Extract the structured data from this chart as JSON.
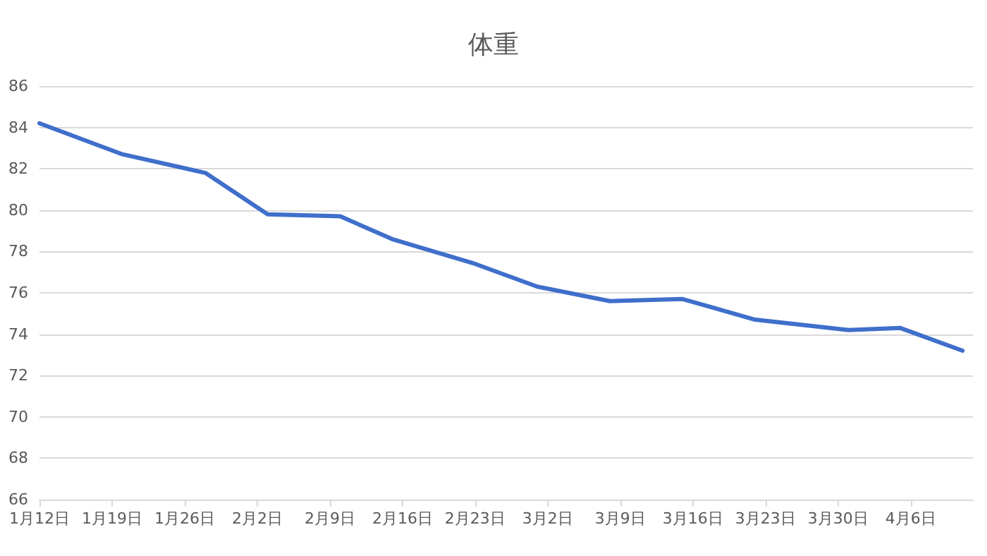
{
  "chart_data": {
    "type": "line",
    "title": "体重",
    "x": [
      "--01-12",
      "--01-20",
      "--01-28",
      "--02-03",
      "--02-10",
      "--02-15",
      "--02-23",
      "--03-01",
      "--03-08",
      "--03-15",
      "--03-22",
      "--03-31",
      "--04-05",
      "--04-11"
    ],
    "series": [
      {
        "color": "#3f6fcb",
        "values": [
          84.2,
          82.7,
          81.8,
          79.8,
          79.7,
          78.6,
          77.4,
          76.3,
          75.6,
          75.7,
          74.7,
          74.2,
          74.3,
          73.2
        ]
      }
    ],
    "xlim": [
      "--01-12",
      "--04-12"
    ],
    "xticks": [
      {
        "value": "--01-12",
        "label": "1月12日"
      },
      {
        "value": "--01-19",
        "label": "1月19日"
      },
      {
        "value": "--01-26",
        "label": "1月26日"
      },
      {
        "value": "--02-02",
        "label": "2月2日"
      },
      {
        "value": "--02-09",
        "label": "2月9日"
      },
      {
        "value": "--02-16",
        "label": "2月16日"
      },
      {
        "value": "--02-23",
        "label": "2月23日"
      },
      {
        "value": "--03-02",
        "label": "3月2日"
      },
      {
        "value": "--03-09",
        "label": "3月9日"
      },
      {
        "value": "--03-16",
        "label": "3月16日"
      },
      {
        "value": "--03-23",
        "label": "3月23日"
      },
      {
        "value": "--03-30",
        "label": "3月30日"
      },
      {
        "value": "--04-06",
        "label": "4月6日"
      }
    ],
    "ylim": [
      66,
      86
    ],
    "yticks": [
      66,
      68,
      70,
      72,
      74,
      76,
      78,
      80,
      82,
      84,
      86
    ],
    "grid": "y",
    "marker": "none",
    "line_style": "solid"
  }
}
